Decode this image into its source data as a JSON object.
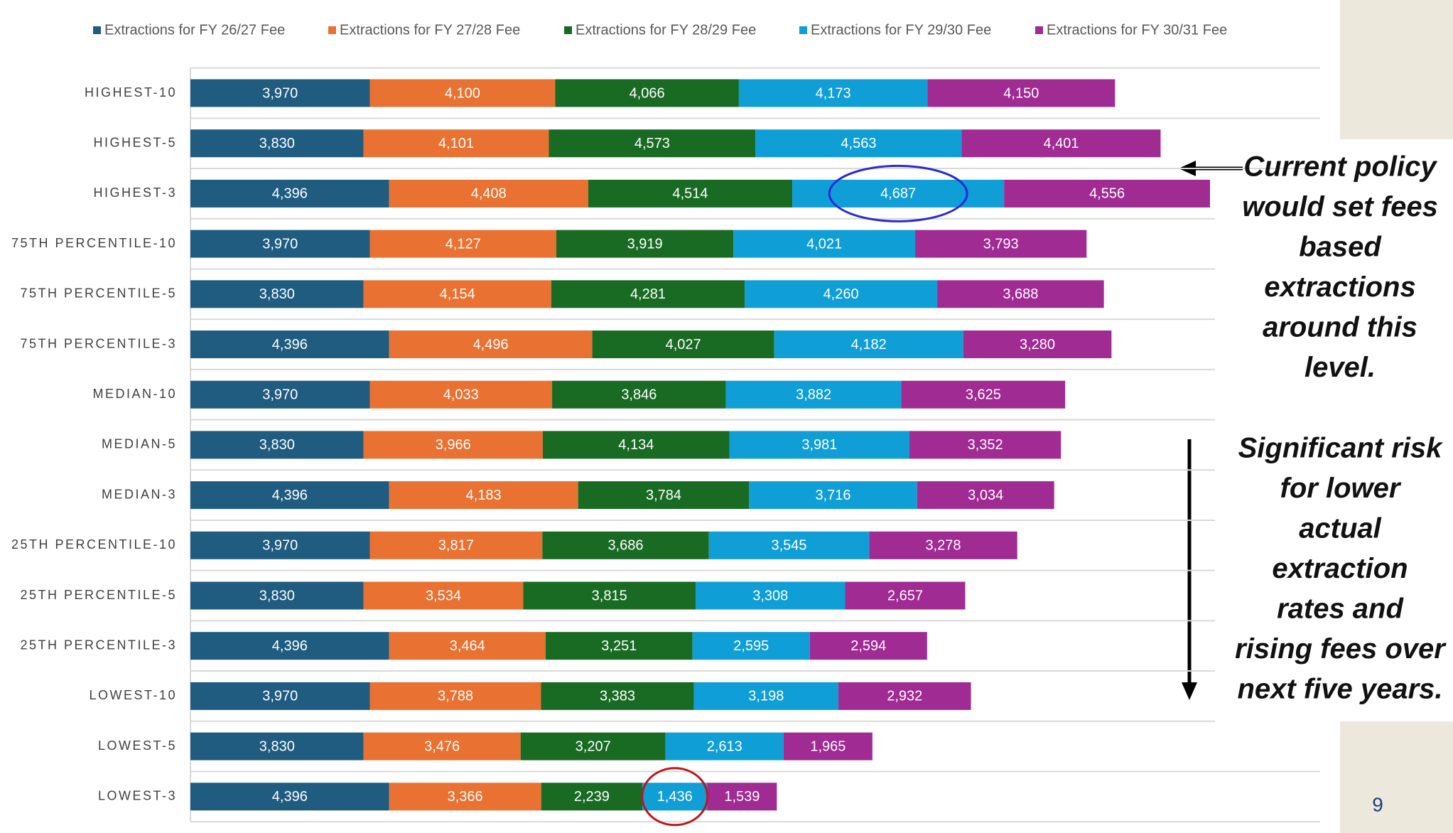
{
  "chart_data": {
    "type": "stacked_bar_horizontal",
    "categories": [
      "HIGHEST-10",
      "HIGHEST-5",
      "HIGHEST-3",
      "75TH PERCENTILE-10",
      "75TH PERCENTILE-5",
      "75TH PERCENTILE-3",
      "MEDIAN-10",
      "MEDIAN-5",
      "MEDIAN-3",
      "25TH PERCENTILE-10",
      "25TH PERCENTILE-5",
      "25TH PERCENTILE-3",
      "LOWEST-10",
      "LOWEST-5",
      "LOWEST-3"
    ],
    "legend": "top",
    "series": [
      {
        "name": "Extractions for FY 26/27 Fee",
        "color": "#1f5c80",
        "values": [
          3970,
          3830,
          4396,
          3970,
          3830,
          4396,
          3970,
          3830,
          4396,
          3970,
          3830,
          4396,
          3970,
          3830,
          4396
        ],
        "value_labels": [
          "3,970",
          "3,830",
          "4,396",
          "3,970",
          "3,830",
          "4,396",
          "3,970",
          "3,830",
          "4,396",
          "3,970",
          "3,830",
          "4,396",
          "3,970",
          "3,830",
          "4,396"
        ]
      },
      {
        "name": "Extractions for FY 27/28 Fee",
        "color": "#e97132",
        "values": [
          4100,
          4101,
          4408,
          4127,
          4154,
          4496,
          4033,
          3966,
          4183,
          3817,
          3534,
          3464,
          3788,
          3476,
          3366
        ],
        "value_labels": [
          "4,100",
          "4,101",
          "4,408",
          "4,127",
          "4,154",
          "4,496",
          "4,033",
          "3,966",
          "4,183",
          "3,817",
          "3,534",
          "3,464",
          "3,788",
          "3,476",
          "3,366"
        ]
      },
      {
        "name": "Extractions for FY 28/29 Fee",
        "color": "#196b24",
        "values": [
          4066,
          4573,
          4514,
          3919,
          4281,
          4027,
          3846,
          4134,
          3784,
          3686,
          3815,
          3251,
          3383,
          3207,
          2239
        ],
        "value_labels": [
          "4,066",
          "4,573",
          "4,514",
          "3,919",
          "4,281",
          "4,027",
          "3,846",
          "4,134",
          "3,784",
          "3,686",
          "3,815",
          "3,251",
          "3,383",
          "3,207",
          "2,239"
        ]
      },
      {
        "name": "Extractions for FY 29/30 Fee",
        "color": "#0f9ed5",
        "values": [
          4173,
          4563,
          4687,
          4021,
          4260,
          4182,
          3882,
          3981,
          3716,
          3545,
          3308,
          2595,
          3198,
          2613,
          1436
        ],
        "value_labels": [
          "4,173",
          "4,563",
          "4,687",
          "4,021",
          "4,260",
          "4,182",
          "3,882",
          "3,981",
          "3,716",
          "3,545",
          "3,308",
          "2,595",
          "3,198",
          "2,613",
          "1,436"
        ]
      },
      {
        "name": "Extractions for FY 30/31 Fee",
        "color": "#a02b93",
        "values": [
          4150,
          4401,
          4556,
          3793,
          3688,
          3280,
          3625,
          3352,
          3034,
          3278,
          2657,
          2594,
          2932,
          1965,
          1539
        ],
        "value_labels": [
          "4,150",
          "4,401",
          "4,556",
          "3,793",
          "3,688",
          "3,280",
          "3,625",
          "3,352",
          "3,034",
          "3,278",
          "2,657",
          "2,594",
          "2,932",
          "1,965",
          "1,539"
        ]
      }
    ],
    "annotations": [
      {
        "lines": [
          "Current policy",
          "would set fees",
          "based",
          "extractions",
          "around this",
          "level."
        ]
      },
      {
        "lines": [
          "Significant risk",
          "for lower",
          "actual",
          "extraction",
          "rates and",
          "rising fees over",
          "next five years."
        ]
      }
    ],
    "page_number": "9"
  }
}
